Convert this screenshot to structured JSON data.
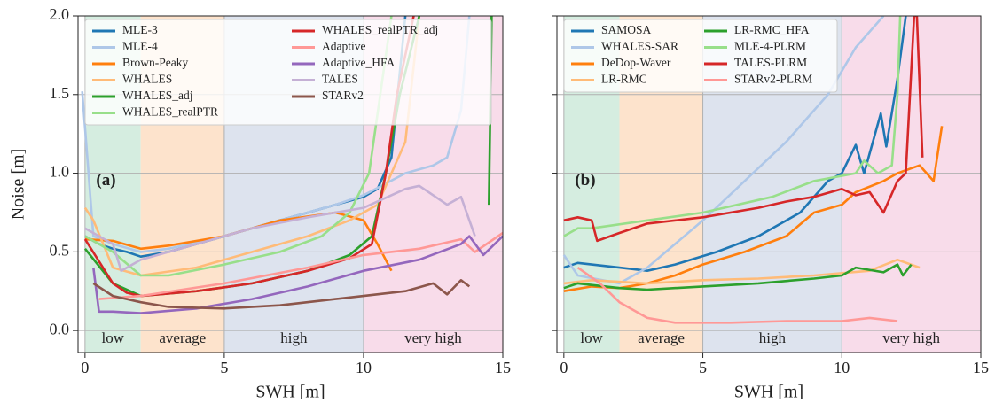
{
  "chart_data": [
    {
      "type": "line",
      "label": "(a)",
      "xlabel": "SWH [m]",
      "ylabel": "Noise [m]",
      "xlim": [
        -0.25,
        15
      ],
      "ylim": [
        -0.14,
        2.0
      ],
      "xticks": [
        0,
        5,
        10,
        15
      ],
      "yticks": [
        {
          "value": 0,
          "label": "0.0"
        },
        0.5,
        {
          "value": 1,
          "label": "1.0"
        },
        1.5,
        {
          "value": 2,
          "label": "2.0"
        }
      ],
      "show_ytick_labels": true,
      "grid": true,
      "legend": "upper-left",
      "legend_ncol": 2,
      "regions": [
        {
          "label": "low",
          "start": 0,
          "end": 2,
          "color": "#d5ede0"
        },
        {
          "label": "average",
          "start": 2,
          "end": 5,
          "color": "#fde3cc"
        },
        {
          "label": "high",
          "start": 5,
          "end": 10,
          "color": "#dde3ee"
        },
        {
          "label": "very high",
          "start": 10,
          "end": 15,
          "color": "#f8dcea"
        }
      ],
      "series": [
        {
          "name": "MLE-3",
          "color": "#1f77b4",
          "x": [
            0,
            0.5,
            1,
            1.5,
            2,
            3,
            4,
            5,
            6,
            7,
            8,
            9,
            10,
            10.5,
            11,
            11.5
          ],
          "values": [
            0.6,
            0.55,
            0.52,
            0.5,
            0.47,
            0.5,
            0.55,
            0.6,
            0.65,
            0.7,
            0.75,
            0.8,
            0.85,
            0.9,
            1.1,
            2.0
          ]
        },
        {
          "name": "MLE-4",
          "color": "#aec7e8",
          "x": [
            -0.1,
            0.3,
            1,
            2,
            3,
            5,
            7,
            9,
            10,
            11.5,
            12.5,
            13,
            13.5,
            13.8
          ],
          "values": [
            1.52,
            0.6,
            0.55,
            0.5,
            0.52,
            0.6,
            0.7,
            0.8,
            0.86,
            1.0,
            1.05,
            1.1,
            1.4,
            2.0
          ]
        },
        {
          "name": "Brown-Peaky",
          "color": "#ff7f0e",
          "x": [
            0,
            1,
            2,
            3,
            5,
            7,
            9,
            10,
            10.5,
            11
          ],
          "values": [
            0.58,
            0.57,
            0.52,
            0.54,
            0.6,
            0.7,
            0.75,
            0.7,
            0.55,
            0.38
          ]
        },
        {
          "name": "WHALES",
          "color": "#ffbb78",
          "x": [
            0,
            0.3,
            1,
            2,
            4,
            6,
            8,
            9.5,
            10.5,
            11.5,
            12
          ],
          "values": [
            0.78,
            0.7,
            0.4,
            0.35,
            0.4,
            0.5,
            0.6,
            0.7,
            0.8,
            1.2,
            2.0
          ]
        },
        {
          "name": "WHALES_adj",
          "color": "#2ca02c",
          "x": [
            0,
            1,
            2,
            4,
            6,
            8,
            9.5,
            10.3,
            10.8,
            11.3,
            12,
            14.4,
            14.5,
            14.6
          ],
          "values": [
            0.52,
            0.3,
            0.22,
            0.25,
            0.3,
            0.38,
            0.48,
            0.6,
            1.0,
            1.5,
            2.0,
            null,
            0.8,
            2.0
          ]
        },
        {
          "name": "WHALES_realPTR",
          "color": "#98df8a",
          "x": [
            0,
            1,
            2,
            3,
            5,
            7,
            8.5,
            9.5,
            10.2,
            10.6,
            11
          ],
          "values": [
            0.6,
            0.5,
            0.35,
            0.35,
            0.42,
            0.5,
            0.6,
            0.75,
            1.0,
            1.5,
            2.0
          ]
        },
        {
          "name": "WHALES_realPTR_adj",
          "color": "#d62728",
          "x": [
            0,
            1,
            1.5,
            2,
            4,
            6,
            8,
            9.5,
            10.3,
            10.8,
            11.2,
            11.8
          ],
          "values": [
            0.58,
            0.3,
            0.24,
            0.22,
            0.25,
            0.3,
            0.38,
            0.46,
            0.55,
            1.0,
            1.5,
            2.0
          ]
        },
        {
          "name": "Adaptive",
          "color": "#ff9896",
          "x": [
            0.5,
            2,
            5,
            8,
            10,
            12,
            13.5,
            14,
            15
          ],
          "values": [
            0.2,
            0.22,
            0.3,
            0.4,
            0.48,
            0.52,
            0.58,
            0.5,
            0.62
          ]
        },
        {
          "name": "Adaptive_HFA",
          "color": "#9467bd",
          "x": [
            0.3,
            0.5,
            1,
            2,
            4,
            6,
            8,
            10,
            12,
            13.5,
            13.8,
            14.3,
            15
          ],
          "values": [
            0.4,
            0.12,
            0.12,
            0.11,
            0.14,
            0.2,
            0.28,
            0.38,
            0.45,
            0.55,
            0.6,
            0.48,
            0.6
          ]
        },
        {
          "name": "TALES",
          "color": "#c5b0d5",
          "x": [
            0,
            1,
            1.3,
            2,
            4,
            6,
            8,
            10,
            11.5,
            12,
            13,
            13.5,
            14
          ],
          "values": [
            0.65,
            0.55,
            0.38,
            0.45,
            0.55,
            0.65,
            0.72,
            0.78,
            0.9,
            0.92,
            0.8,
            0.85,
            0.6
          ]
        },
        {
          "name": "STARv2",
          "color": "#8c564b",
          "x": [
            0.3,
            1,
            2,
            3,
            5,
            7,
            9,
            10,
            11.5,
            12.5,
            13,
            13.5,
            13.8
          ],
          "values": [
            0.3,
            0.22,
            0.18,
            0.15,
            0.14,
            0.16,
            0.2,
            0.22,
            0.25,
            0.3,
            0.23,
            0.32,
            0.28
          ]
        }
      ]
    },
    {
      "type": "line",
      "label": "(b)",
      "xlabel": "SWH [m]",
      "xlim": [
        -0.25,
        15
      ],
      "ylim": [
        -0.14,
        2.0
      ],
      "xticks": [
        0,
        5,
        10,
        15
      ],
      "yticks": [
        0,
        0.5,
        1,
        1.5,
        2
      ],
      "show_ytick_labels": false,
      "grid": true,
      "legend": "upper-left",
      "legend_ncol": 2,
      "regions": [
        {
          "label": "low",
          "start": 0,
          "end": 2,
          "color": "#d5ede0"
        },
        {
          "label": "average",
          "start": 2,
          "end": 5,
          "color": "#fde3cc"
        },
        {
          "label": "high",
          "start": 5,
          "end": 10,
          "color": "#dde3ee"
        },
        {
          "label": "very high",
          "start": 10,
          "end": 15,
          "color": "#f8dcea"
        }
      ],
      "series": [
        {
          "name": "SAMOSA",
          "color": "#1f77b4",
          "x": [
            0,
            0.5,
            2,
            3,
            4,
            5.5,
            7,
            8.5,
            9.5,
            10,
            10.5,
            10.8,
            11.4,
            11.6,
            12,
            12.3
          ],
          "values": [
            0.4,
            0.43,
            0.4,
            0.38,
            0.42,
            0.5,
            0.6,
            0.75,
            0.95,
            1.0,
            1.18,
            1.0,
            1.38,
            1.17,
            1.6,
            2.0
          ]
        },
        {
          "name": "WHALES-SAR",
          "color": "#aec7e8",
          "x": [
            0,
            0.5,
            2,
            3,
            4,
            5,
            6.5,
            8,
            9.5,
            10.5,
            11.5
          ],
          "values": [
            0.48,
            0.35,
            0.3,
            0.4,
            0.55,
            0.7,
            0.95,
            1.2,
            1.5,
            1.8,
            2.0
          ]
        },
        {
          "name": "DeDop-Waver",
          "color": "#ff7f0e",
          "x": [
            0,
            1,
            2,
            3,
            4,
            5,
            6.5,
            8,
            9,
            10,
            10.5,
            11.5,
            12,
            12.8,
            13.3,
            13.6
          ],
          "values": [
            0.25,
            0.28,
            0.27,
            0.3,
            0.35,
            0.42,
            0.5,
            0.6,
            0.75,
            0.8,
            0.88,
            0.95,
            1.0,
            1.05,
            0.95,
            1.3
          ]
        },
        {
          "name": "LR-RMC",
          "color": "#ffbb78",
          "x": [
            0,
            1,
            3,
            5,
            7,
            9,
            11,
            12,
            12.8
          ],
          "values": [
            0.3,
            0.32,
            0.3,
            0.32,
            0.33,
            0.35,
            0.38,
            0.45,
            0.4
          ]
        },
        {
          "name": "LR-RMC_HFA",
          "color": "#2ca02c",
          "x": [
            0,
            0.5,
            2,
            3,
            5,
            7,
            9,
            10,
            10.5,
            11.5,
            12,
            12.2,
            12.5
          ],
          "values": [
            0.27,
            0.3,
            0.27,
            0.26,
            0.28,
            0.3,
            0.33,
            0.35,
            0.4,
            0.37,
            0.42,
            0.35,
            0.42
          ]
        },
        {
          "name": "MLE-4-PLRM",
          "color": "#98df8a",
          "x": [
            0,
            0.5,
            1,
            3,
            5,
            7.5,
            9,
            10.5,
            10.8,
            11.3,
            11.8,
            12,
            12.1
          ],
          "values": [
            0.6,
            0.65,
            0.65,
            0.7,
            0.75,
            0.85,
            0.95,
            1.0,
            1.08,
            1.0,
            1.05,
            1.5,
            2.0
          ]
        },
        {
          "name": "TALES-PLRM",
          "color": "#d62728",
          "x": [
            0,
            0.5,
            1,
            1.2,
            2,
            3,
            5,
            7,
            8,
            9,
            10,
            10.5,
            11,
            11.5,
            12,
            12.3,
            12.6,
            12.7,
            12.9
          ],
          "values": [
            0.7,
            0.72,
            0.7,
            0.57,
            0.62,
            0.68,
            0.72,
            0.78,
            0.82,
            0.85,
            0.9,
            0.86,
            0.88,
            0.75,
            0.95,
            1.0,
            2.0,
            2.0,
            1.1
          ]
        },
        {
          "name": "STARv2-PLRM",
          "color": "#ff9896",
          "x": [
            0.5,
            1.3,
            2,
            3,
            4,
            6,
            8,
            10,
            11,
            12
          ],
          "values": [
            0.4,
            0.3,
            0.18,
            0.08,
            0.05,
            0.05,
            0.06,
            0.06,
            0.08,
            0.06
          ]
        }
      ]
    }
  ]
}
